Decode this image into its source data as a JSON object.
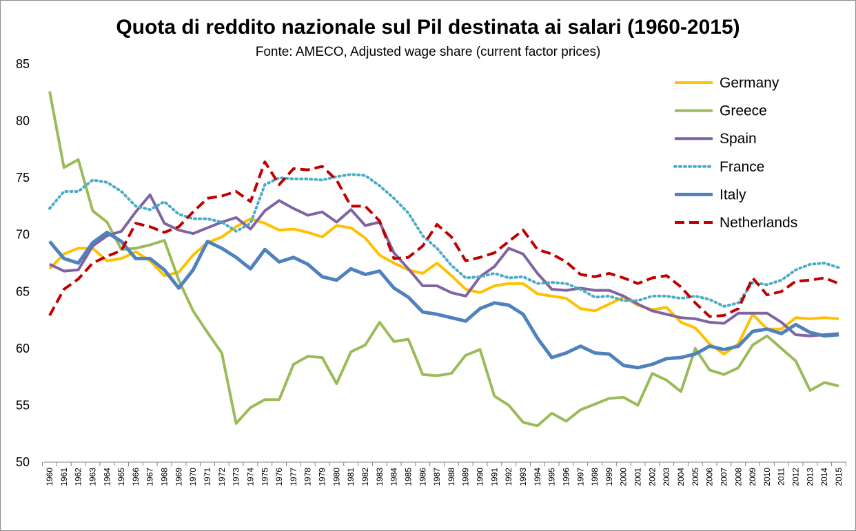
{
  "chart_data": {
    "type": "line",
    "title": "Quota di reddito nazionale sul Pil destinata ai salari (1960-2015)",
    "subtitle": "Fonte: AMECO, Adjusted wage share (current factor prices)",
    "xlabel": "",
    "ylabel": "",
    "ylim": [
      50,
      85
    ],
    "yticks": [
      50,
      55,
      60,
      65,
      70,
      75,
      80,
      85
    ],
    "grid": false,
    "legend_position": "top-right",
    "x": [
      "1960",
      "1961",
      "1962",
      "1963",
      "1964",
      "1965",
      "1966",
      "1967",
      "1968",
      "1969",
      "1970",
      "1971",
      "1972",
      "1973",
      "1974",
      "1975",
      "1976",
      "1977",
      "1978",
      "1979",
      "1980",
      "1981",
      "1982",
      "1983",
      "1984",
      "1985",
      "1986",
      "1987",
      "1988",
      "1989",
      "1990",
      "1991",
      "1992",
      "1993",
      "1994",
      "1995",
      "1996",
      "1997",
      "1998",
      "1999",
      "2000",
      "2001",
      "2002",
      "2003",
      "2004",
      "2005",
      "2006",
      "2007",
      "2008",
      "2009",
      "2010",
      "2011",
      "2012",
      "2013",
      "2014",
      "2015"
    ],
    "series": [
      {
        "name": "Germany",
        "color": "#FFC000",
        "style": "solid",
        "width": 4,
        "values": [
          67.0,
          68.3,
          68.8,
          68.8,
          67.7,
          67.9,
          68.5,
          67.7,
          66.4,
          66.7,
          68.2,
          69.3,
          69.8,
          70.7,
          71.4,
          71.0,
          70.4,
          70.5,
          70.2,
          69.8,
          70.8,
          70.6,
          69.7,
          68.2,
          67.5,
          66.9,
          66.6,
          67.5,
          66.4,
          65.2,
          64.9,
          65.5,
          65.7,
          65.7,
          64.8,
          64.6,
          64.4,
          63.5,
          63.3,
          63.9,
          64.5,
          63.8,
          63.4,
          63.6,
          62.3,
          61.8,
          60.4,
          59.5,
          60.4,
          63.0,
          61.7,
          61.7,
          62.7,
          62.6,
          62.7,
          62.6
        ]
      },
      {
        "name": "Greece",
        "color": "#9BBB59",
        "style": "solid",
        "width": 4,
        "values": [
          82.6,
          75.9,
          76.6,
          72.1,
          71.1,
          68.7,
          68.8,
          69.1,
          69.5,
          66.0,
          63.3,
          61.4,
          59.6,
          53.4,
          54.8,
          55.5,
          55.5,
          58.6,
          59.3,
          59.2,
          56.9,
          59.7,
          60.3,
          62.3,
          60.6,
          60.8,
          57.7,
          57.6,
          57.8,
          59.4,
          59.9,
          55.8,
          55.0,
          53.5,
          53.2,
          54.3,
          53.6,
          54.6,
          55.1,
          55.6,
          55.7,
          55.0,
          57.8,
          57.2,
          56.2,
          60.0,
          58.1,
          57.7,
          58.3,
          60.3,
          61.1,
          60.0,
          58.9,
          56.3,
          57.0,
          56.7
        ]
      },
      {
        "name": "Spain",
        "color": "#8064A2",
        "style": "solid",
        "width": 4,
        "values": [
          67.4,
          66.8,
          66.9,
          69.0,
          69.9,
          70.3,
          72.0,
          73.5,
          71.0,
          70.4,
          70.1,
          70.6,
          71.1,
          71.5,
          70.5,
          72.1,
          73.0,
          72.3,
          71.7,
          72.0,
          71.1,
          72.2,
          70.8,
          71.1,
          68.4,
          67.0,
          65.5,
          65.5,
          64.9,
          64.6,
          66.3,
          67.2,
          68.8,
          68.3,
          66.6,
          65.2,
          65.1,
          65.3,
          65.1,
          65.1,
          64.6,
          63.9,
          63.3,
          63.0,
          62.7,
          62.6,
          62.3,
          62.2,
          63.1,
          63.1,
          63.1,
          62.3,
          61.2,
          61.1,
          61.2,
          61.3
        ]
      },
      {
        "name": "France",
        "color": "#4BACC6",
        "style": "dotted",
        "width": 4,
        "values": [
          72.3,
          73.8,
          73.8,
          74.8,
          74.6,
          73.8,
          72.5,
          72.2,
          72.9,
          71.8,
          71.4,
          71.4,
          71.1,
          70.3,
          71.0,
          74.4,
          75.0,
          74.9,
          74.9,
          74.8,
          75.1,
          75.3,
          75.2,
          74.3,
          73.2,
          71.9,
          69.9,
          68.8,
          67.3,
          66.2,
          66.3,
          66.6,
          66.2,
          66.3,
          65.7,
          65.8,
          65.7,
          65.2,
          64.5,
          64.6,
          64.2,
          64.2,
          64.6,
          64.6,
          64.4,
          64.6,
          64.3,
          63.7,
          64.0,
          65.8,
          65.6,
          66.0,
          66.9,
          67.4,
          67.5,
          67.1
        ]
      },
      {
        "name": "Italy",
        "color": "#4F81BD",
        "style": "solid",
        "width": 5,
        "values": [
          69.4,
          67.9,
          67.5,
          69.3,
          70.2,
          69.4,
          67.9,
          67.9,
          66.9,
          65.3,
          66.9,
          69.4,
          68.8,
          68.0,
          67.0,
          68.7,
          67.6,
          68.0,
          67.4,
          66.3,
          66.0,
          67.0,
          66.5,
          66.8,
          65.3,
          64.5,
          63.2,
          63.0,
          62.7,
          62.4,
          63.5,
          64.0,
          63.8,
          63.0,
          60.9,
          59.2,
          59.6,
          60.2,
          59.6,
          59.5,
          58.5,
          58.3,
          58.6,
          59.1,
          59.2,
          59.5,
          60.2,
          59.9,
          60.2,
          61.5,
          61.7,
          61.3,
          62.1,
          61.4,
          61.1,
          61.2
        ]
      },
      {
        "name": "Netherlands",
        "color": "#C00000",
        "style": "dashed",
        "width": 4,
        "values": [
          62.9,
          65.2,
          66.1,
          67.5,
          68.1,
          68.6,
          71.0,
          70.7,
          70.2,
          70.7,
          72.0,
          73.2,
          73.4,
          73.8,
          72.9,
          76.4,
          74.4,
          75.8,
          75.7,
          76.0,
          74.8,
          72.5,
          72.5,
          71.2,
          67.9,
          68.0,
          69.0,
          70.9,
          69.8,
          67.7,
          68.0,
          68.4,
          69.4,
          70.4,
          68.7,
          68.3,
          67.6,
          66.5,
          66.3,
          66.6,
          66.2,
          65.7,
          66.2,
          66.4,
          65.4,
          64.0,
          62.8,
          62.9,
          63.5,
          66.2,
          64.7,
          65.0,
          65.9,
          66.0,
          66.2,
          65.7
        ]
      }
    ]
  }
}
